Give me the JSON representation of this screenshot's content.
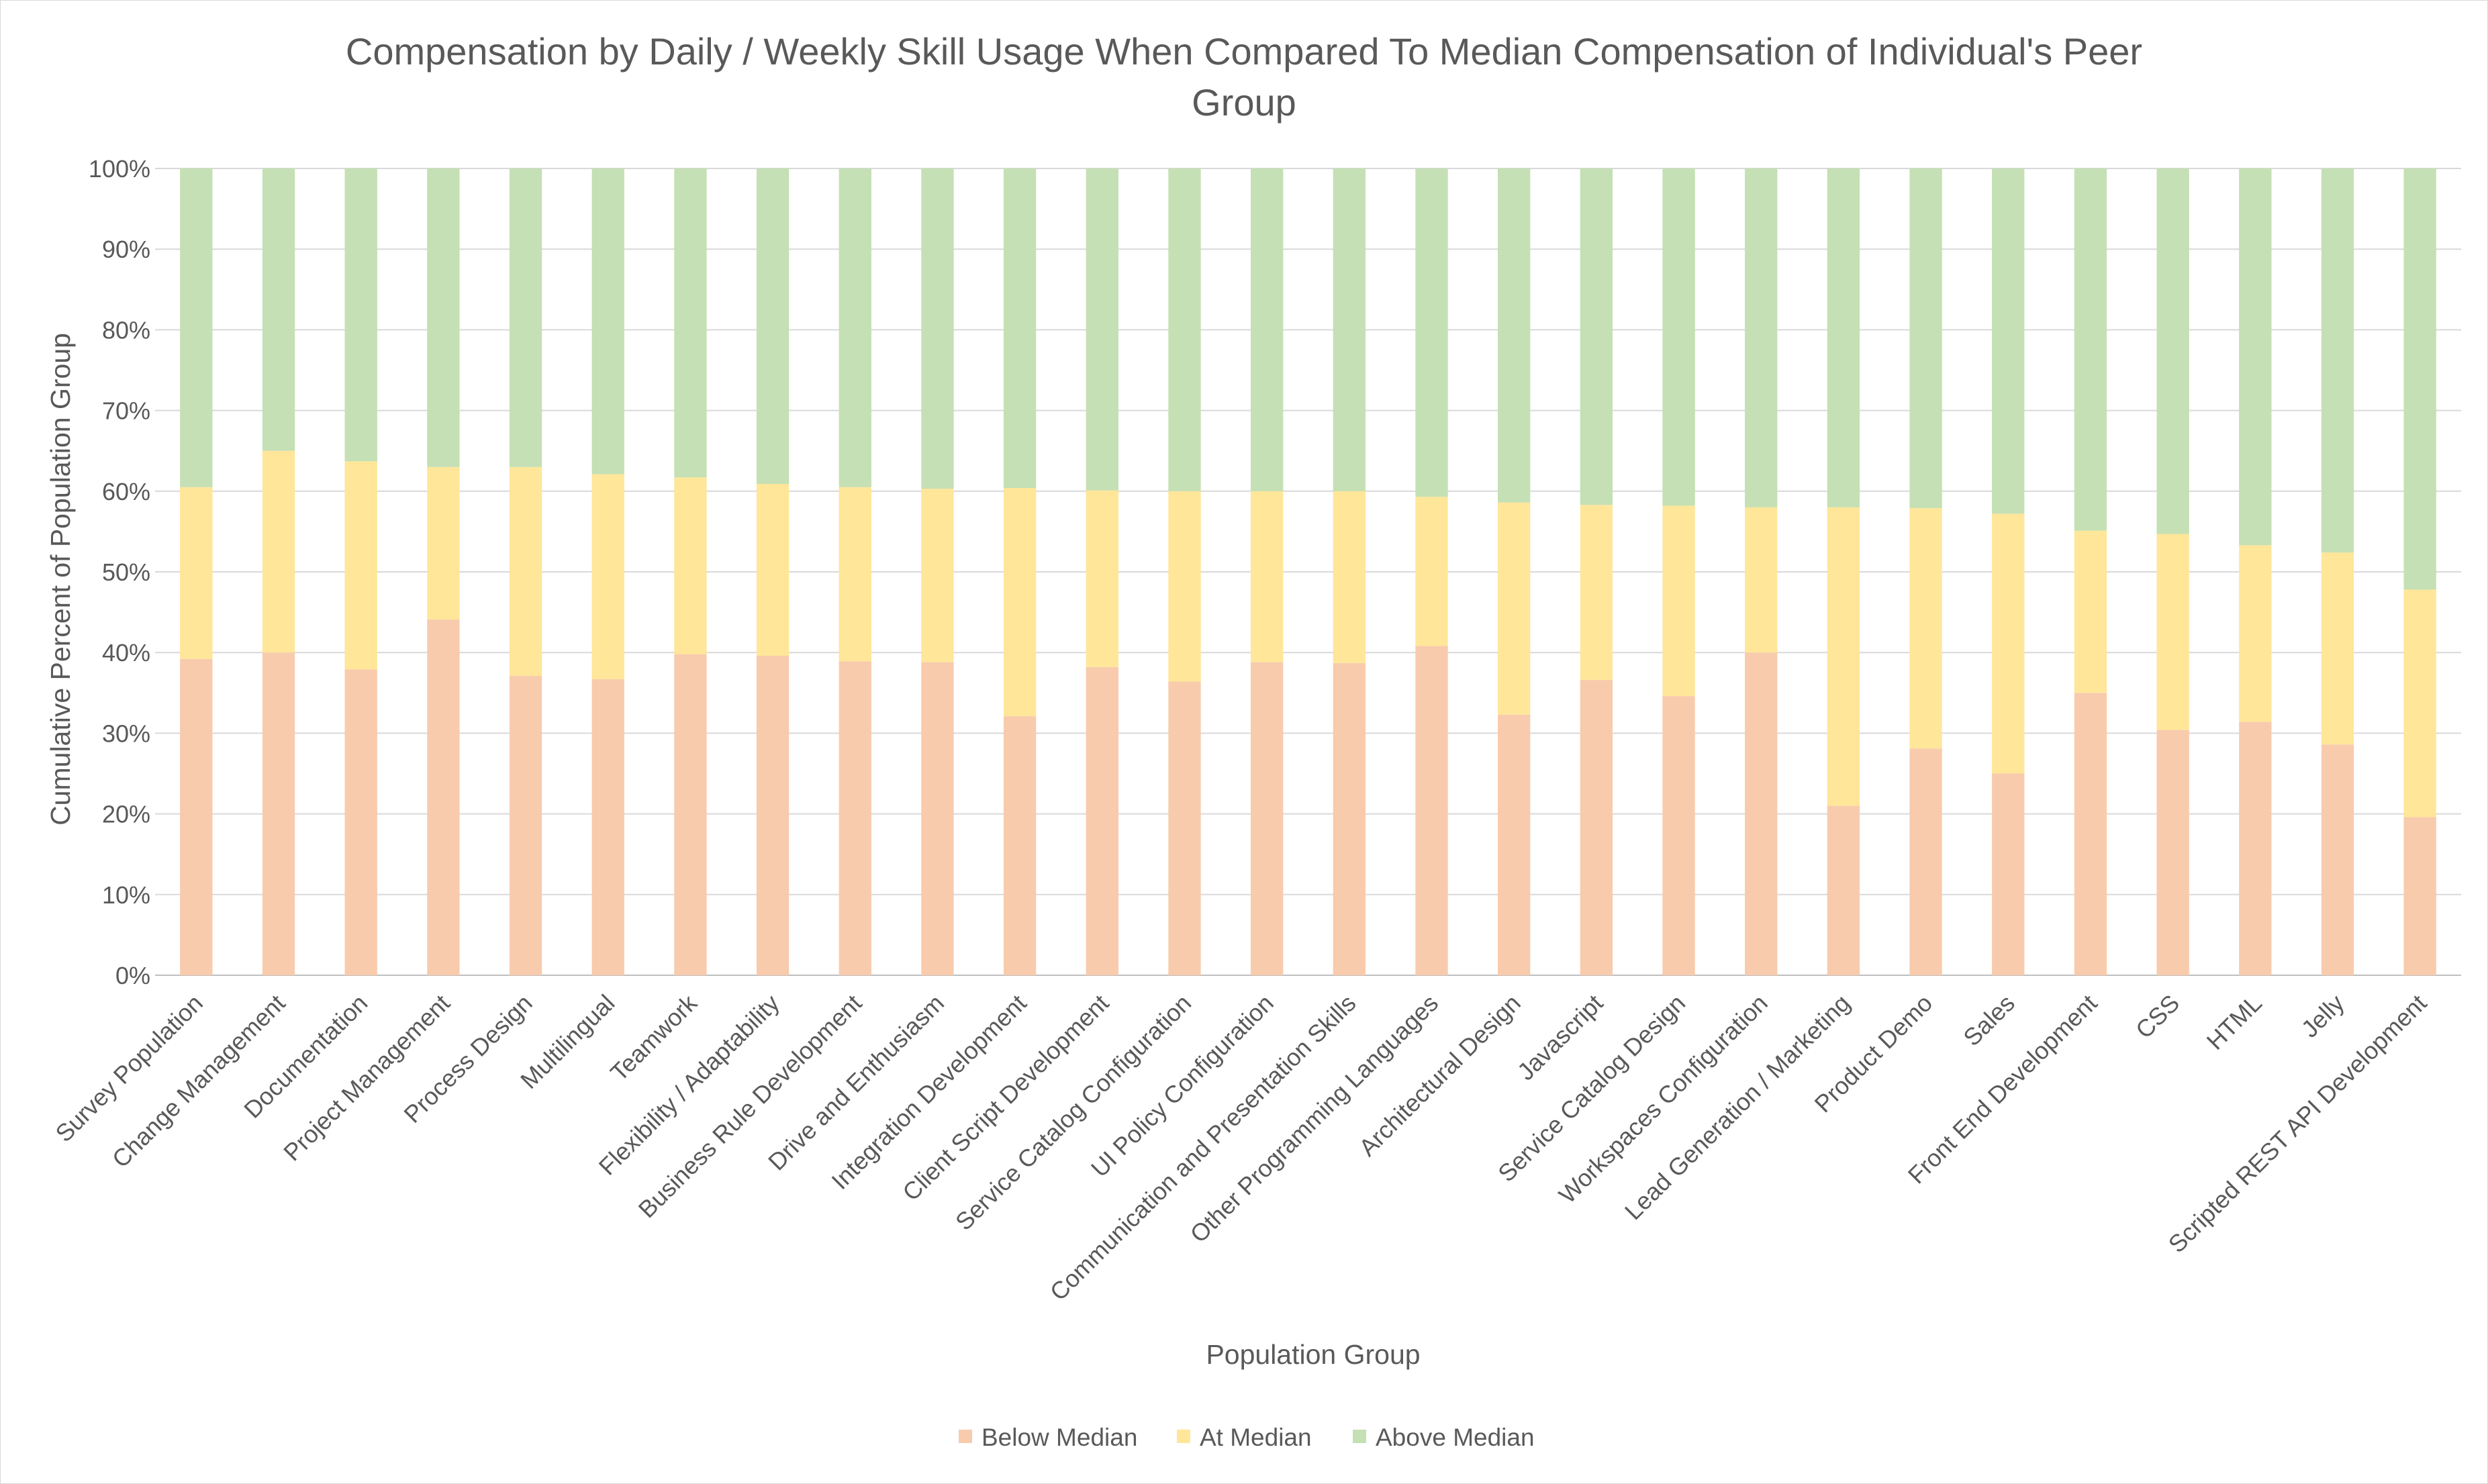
{
  "chart_data": {
    "type": "bar",
    "stacked": true,
    "title_line1": "Compensation by Daily / Weekly Skill Usage When Compared To Median Compensation of Individual's Peer",
    "title_line2": "Group",
    "xlabel": "Population Group",
    "ylabel": "Cumulative Percent of Population Group",
    "ylim": [
      0,
      100
    ],
    "y_ticks": [
      "0%",
      "10%",
      "20%",
      "30%",
      "40%",
      "50%",
      "60%",
      "70%",
      "80%",
      "90%",
      "100%"
    ],
    "grid": true,
    "legend_position": "bottom",
    "categories": [
      "Survey Population",
      "Change Management",
      "Documentation",
      "Project Management",
      "Process Design",
      "Multilingual",
      "Teamwork",
      "Flexibility / Adaptability",
      "Business Rule Development",
      "Drive and Enthusiasm",
      "Integration Development",
      "Client Script Development",
      "Service Catalog Configuration",
      "UI Policy Configuration",
      "Communication and Presentation Skills",
      "Other Programming Languages",
      "Architectural Design",
      "Javascript",
      "Service Catalog Design",
      "Workspaces Configuration",
      "Lead Generation / Marketing",
      "Product Demo",
      "Sales",
      "Front End Development",
      "CSS",
      "HTML",
      "Jelly",
      "Scripted REST API Development"
    ],
    "series": [
      {
        "name": "Below Median",
        "color": "#f8cbad",
        "values": [
          39.2,
          40.0,
          37.9,
          44.1,
          37.1,
          36.7,
          39.8,
          39.6,
          38.9,
          38.8,
          32.1,
          38.2,
          36.4,
          38.8,
          38.7,
          40.8,
          32.3,
          36.6,
          34.6,
          40.0,
          21.0,
          28.1,
          25.0,
          35.0,
          30.4,
          31.4,
          28.6,
          19.6
        ]
      },
      {
        "name": "At Median",
        "color": "#ffe699",
        "values": [
          21.3,
          25.0,
          25.8,
          18.9,
          25.9,
          25.4,
          21.9,
          21.3,
          21.6,
          21.5,
          28.3,
          21.9,
          23.6,
          21.2,
          21.3,
          18.5,
          26.3,
          21.7,
          23.6,
          18.0,
          37.0,
          29.8,
          32.2,
          20.1,
          24.3,
          21.9,
          23.8,
          28.2
        ]
      },
      {
        "name": "Above Median",
        "color": "#c5e0b4",
        "values": [
          39.5,
          35.0,
          36.3,
          37.0,
          37.0,
          37.9,
          38.3,
          39.1,
          39.5,
          39.7,
          39.6,
          39.9,
          40.0,
          40.0,
          40.0,
          40.7,
          41.4,
          41.7,
          41.8,
          42.0,
          42.0,
          42.1,
          42.8,
          44.9,
          45.3,
          46.7,
          47.6,
          52.2
        ]
      }
    ]
  }
}
